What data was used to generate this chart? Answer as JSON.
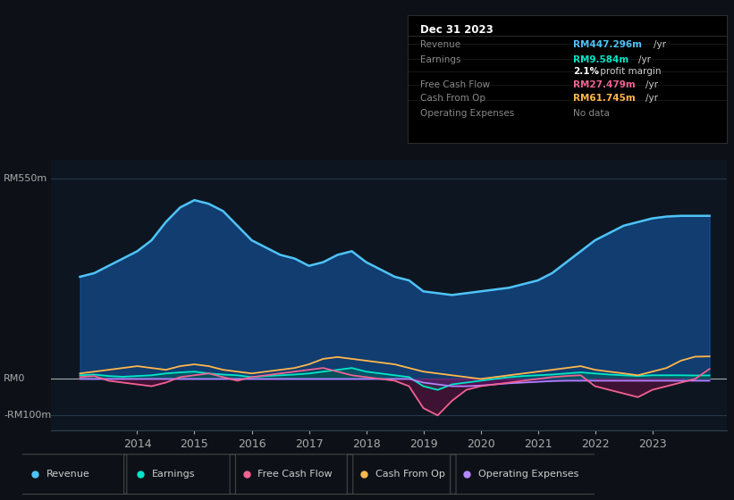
{
  "bg_color": "#0d1117",
  "chart_bg": "#0d1620",
  "ylabel_top": "RM550m",
  "ylabel_mid": "RM0",
  "ylabel_bot": "-RM100m",
  "ylim": [
    -140,
    600
  ],
  "yticks": [
    -100,
    0,
    550
  ],
  "xlim_start": 2012.5,
  "xlim_end": 2024.3,
  "xtick_years": [
    2014,
    2015,
    2016,
    2017,
    2018,
    2019,
    2020,
    2021,
    2022,
    2023
  ],
  "legend": [
    {
      "label": "Revenue",
      "color": "#4fc3f7"
    },
    {
      "label": "Earnings",
      "color": "#00e5c8"
    },
    {
      "label": "Free Cash Flow",
      "color": "#f06292"
    },
    {
      "label": "Cash From Op",
      "color": "#ffb74d"
    },
    {
      "label": "Operating Expenses",
      "color": "#b388ff"
    }
  ],
  "series": {
    "years": [
      2013.0,
      2013.25,
      2013.5,
      2013.75,
      2014.0,
      2014.25,
      2014.5,
      2014.75,
      2015.0,
      2015.25,
      2015.5,
      2015.75,
      2016.0,
      2016.25,
      2016.5,
      2016.75,
      2017.0,
      2017.25,
      2017.5,
      2017.75,
      2018.0,
      2018.25,
      2018.5,
      2018.75,
      2019.0,
      2019.25,
      2019.5,
      2019.75,
      2020.0,
      2020.25,
      2020.5,
      2020.75,
      2021.0,
      2021.25,
      2021.5,
      2021.75,
      2022.0,
      2022.25,
      2022.5,
      2022.75,
      2023.0,
      2023.25,
      2023.5,
      2023.75,
      2024.0
    ],
    "revenue": [
      280,
      290,
      310,
      330,
      350,
      380,
      430,
      470,
      490,
      480,
      460,
      420,
      380,
      360,
      340,
      330,
      310,
      320,
      340,
      350,
      320,
      300,
      280,
      270,
      240,
      235,
      230,
      235,
      240,
      245,
      250,
      260,
      270,
      290,
      320,
      350,
      380,
      400,
      420,
      430,
      440,
      445,
      447,
      447,
      447
    ],
    "earnings": [
      10,
      12,
      8,
      6,
      8,
      10,
      15,
      18,
      20,
      15,
      12,
      10,
      5,
      8,
      10,
      12,
      15,
      20,
      25,
      30,
      20,
      15,
      10,
      5,
      -20,
      -30,
      -15,
      -10,
      -5,
      0,
      5,
      8,
      10,
      12,
      15,
      18,
      15,
      12,
      10,
      8,
      10,
      10,
      10,
      9.5,
      9.584
    ],
    "free_cash_flow": [
      5,
      8,
      -5,
      -10,
      -15,
      -20,
      -10,
      5,
      10,
      15,
      5,
      -5,
      5,
      10,
      15,
      20,
      25,
      30,
      20,
      10,
      5,
      0,
      -5,
      -20,
      -80,
      -100,
      -60,
      -30,
      -20,
      -15,
      -10,
      -5,
      0,
      5,
      8,
      10,
      -20,
      -30,
      -40,
      -50,
      -30,
      -20,
      -10,
      0,
      27.479
    ],
    "cash_from_op": [
      15,
      20,
      25,
      30,
      35,
      30,
      25,
      35,
      40,
      35,
      25,
      20,
      15,
      20,
      25,
      30,
      40,
      55,
      60,
      55,
      50,
      45,
      40,
      30,
      20,
      15,
      10,
      5,
      0,
      5,
      10,
      15,
      20,
      25,
      30,
      35,
      25,
      20,
      15,
      10,
      20,
      30,
      50,
      61,
      61.745
    ],
    "operating_expenses": [
      0,
      0,
      0,
      0,
      0,
      0,
      0,
      0,
      0,
      0,
      0,
      0,
      0,
      0,
      0,
      0,
      0,
      0,
      0,
      0,
      0,
      0,
      0,
      0,
      -10,
      -15,
      -20,
      -20,
      -18,
      -15,
      -12,
      -10,
      -8,
      -6,
      -5,
      -5,
      -5,
      -5,
      -5,
      -5,
      -5,
      -5,
      -5,
      -5,
      -5
    ]
  }
}
